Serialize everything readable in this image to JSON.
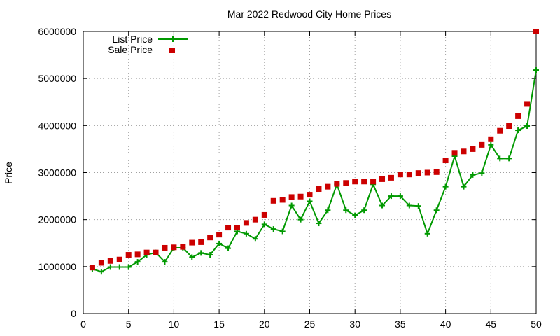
{
  "chart_data": {
    "type": "line",
    "title": "Mar 2022 Redwood City Home Prices",
    "xlabel": "",
    "ylabel": "Price",
    "xlim": [
      0,
      50
    ],
    "ylim": [
      0,
      6000000
    ],
    "xticks": [
      0,
      5,
      10,
      15,
      20,
      25,
      30,
      35,
      40,
      45,
      50
    ],
    "yticks": [
      0,
      1000000,
      2000000,
      3000000,
      4000000,
      5000000,
      6000000
    ],
    "grid": true,
    "legend_position": "top-left",
    "x": [
      1,
      2,
      3,
      4,
      5,
      6,
      7,
      8,
      9,
      10,
      11,
      12,
      13,
      14,
      15,
      16,
      17,
      18,
      19,
      20,
      21,
      22,
      23,
      24,
      25,
      26,
      27,
      28,
      29,
      30,
      31,
      32,
      33,
      34,
      35,
      36,
      37,
      38,
      39,
      40,
      41,
      42,
      43,
      44,
      45,
      46,
      47,
      48,
      49,
      50
    ],
    "series": [
      {
        "name": "List Price",
        "style": "linespoints",
        "color": "#009900",
        "marker": "plus",
        "values": [
          950000,
          890000,
          990000,
          990000,
          990000,
          1100000,
          1250000,
          1300000,
          1100000,
          1400000,
          1400000,
          1200000,
          1290000,
          1250000,
          1490000,
          1390000,
          1750000,
          1700000,
          1590000,
          1900000,
          1800000,
          1750000,
          2300000,
          2000000,
          2390000,
          1920000,
          2200000,
          2750000,
          2200000,
          2090000,
          2200000,
          2750000,
          2300000,
          2500000,
          2500000,
          2300000,
          2290000,
          1700000,
          2200000,
          2700000,
          3350000,
          2700000,
          2950000,
          2990000,
          3590000,
          3300000,
          3300000,
          3900000,
          3990000,
          5180000
        ]
      },
      {
        "name": "Sale Price",
        "style": "points",
        "color": "#cc0000",
        "marker": "square",
        "values": [
          980000,
          1080000,
          1120000,
          1150000,
          1250000,
          1260000,
          1300000,
          1300000,
          1400000,
          1410000,
          1420000,
          1510000,
          1520000,
          1620000,
          1680000,
          1830000,
          1830000,
          1930000,
          2000000,
          2100000,
          2400000,
          2420000,
          2480000,
          2490000,
          2530000,
          2650000,
          2700000,
          2760000,
          2780000,
          2810000,
          2810000,
          2810000,
          2860000,
          2890000,
          2960000,
          2960000,
          2990000,
          3000000,
          3010000,
          3260000,
          3420000,
          3450000,
          3500000,
          3590000,
          3710000,
          3890000,
          3990000,
          4200000,
          4460000,
          6000000
        ]
      }
    ]
  }
}
